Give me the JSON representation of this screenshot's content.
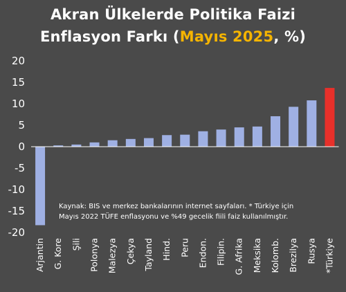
{
  "chart_data": {
    "type": "bar",
    "title_line1": "Akran Ülkelerde Politika Faizi",
    "title_line2_prefix": "Enflasyon Farkı (",
    "title_line2_highlight": "Mayıs 2025",
    "title_line2_suffix": ", %)",
    "categories": [
      "Arjantin",
      "G. Kore",
      "Şili",
      "Polonya",
      "Malezya",
      "Çekya",
      "Tayland",
      "Hind.",
      "Peru",
      "Endon.",
      "Filipin.",
      "G. Afrika",
      "Meksika",
      "Kolomb.",
      "Brezilya",
      "Rusya",
      "*Türkiye"
    ],
    "values": [
      -18.3,
      0.3,
      0.5,
      1.0,
      1.5,
      1.8,
      2.0,
      2.7,
      2.8,
      3.6,
      4.0,
      4.5,
      4.7,
      7.1,
      9.3,
      10.8,
      13.7
    ],
    "ylim": [
      -20,
      20
    ],
    "yticks": [
      -20,
      -15,
      -10,
      -5,
      0,
      5,
      10,
      15,
      20
    ],
    "grid": false,
    "annotation_line1": "Kaynak: BIS ve merkez bankalarının internet sayfaları. * Türkiye için",
    "annotation_line2": "Mayıs 2022 TÜFE enflasyonu ve %49 gecelik fiili faiz kullanılmıştır.",
    "colors": {
      "background": "#4a4a4a",
      "bar": "#9fb0e3",
      "highlight_bar": "#e8302a",
      "highlight_text": "#f5b400",
      "text": "#ffffff"
    }
  }
}
